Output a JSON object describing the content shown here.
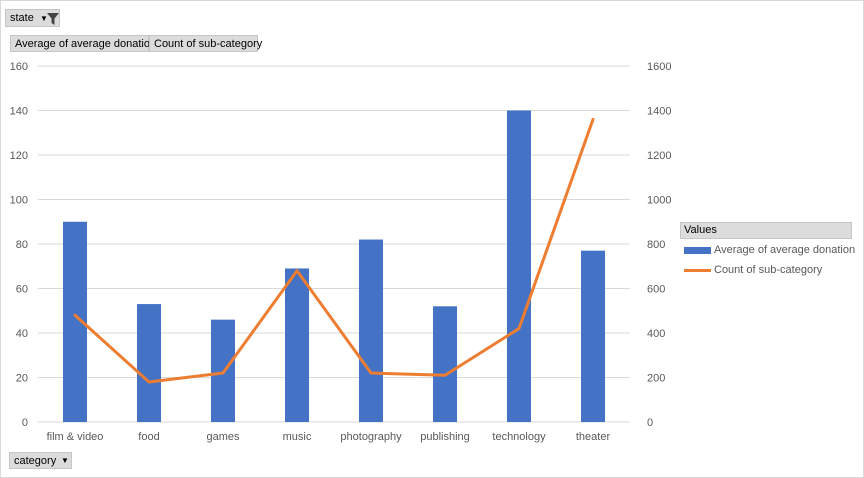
{
  "filters": {
    "state_label": "state",
    "category_label": "category"
  },
  "value_fields": [
    "Average of average donation",
    "Count of sub-category"
  ],
  "legend": {
    "title": "Values",
    "items": [
      "Average of average donation",
      "Count of sub-category"
    ]
  },
  "colors": {
    "bar": "#4472c4",
    "line": "#ed7d31",
    "grid": "#d9d9d9"
  },
  "chart_data": {
    "type": "bar",
    "categories": [
      "film & video",
      "food",
      "games",
      "music",
      "photography",
      "publishing",
      "technology",
      "theater"
    ],
    "series": [
      {
        "name": "Average of average donation",
        "type": "bar",
        "axis": "left",
        "values": [
          90,
          53,
          46,
          69,
          82,
          52,
          140,
          77
        ]
      },
      {
        "name": "Count of sub-category",
        "type": "line",
        "axis": "right",
        "values": [
          480,
          180,
          220,
          680,
          220,
          210,
          420,
          1360
        ]
      }
    ],
    "y_left": {
      "min": 0,
      "max": 160,
      "ticks": [
        0,
        20,
        40,
        60,
        80,
        100,
        120,
        140,
        160
      ]
    },
    "y_right": {
      "min": 0,
      "max": 1600,
      "ticks": [
        0,
        200,
        400,
        600,
        800,
        1000,
        1200,
        1400,
        1600
      ]
    },
    "grid": true,
    "legend_position": "right"
  }
}
